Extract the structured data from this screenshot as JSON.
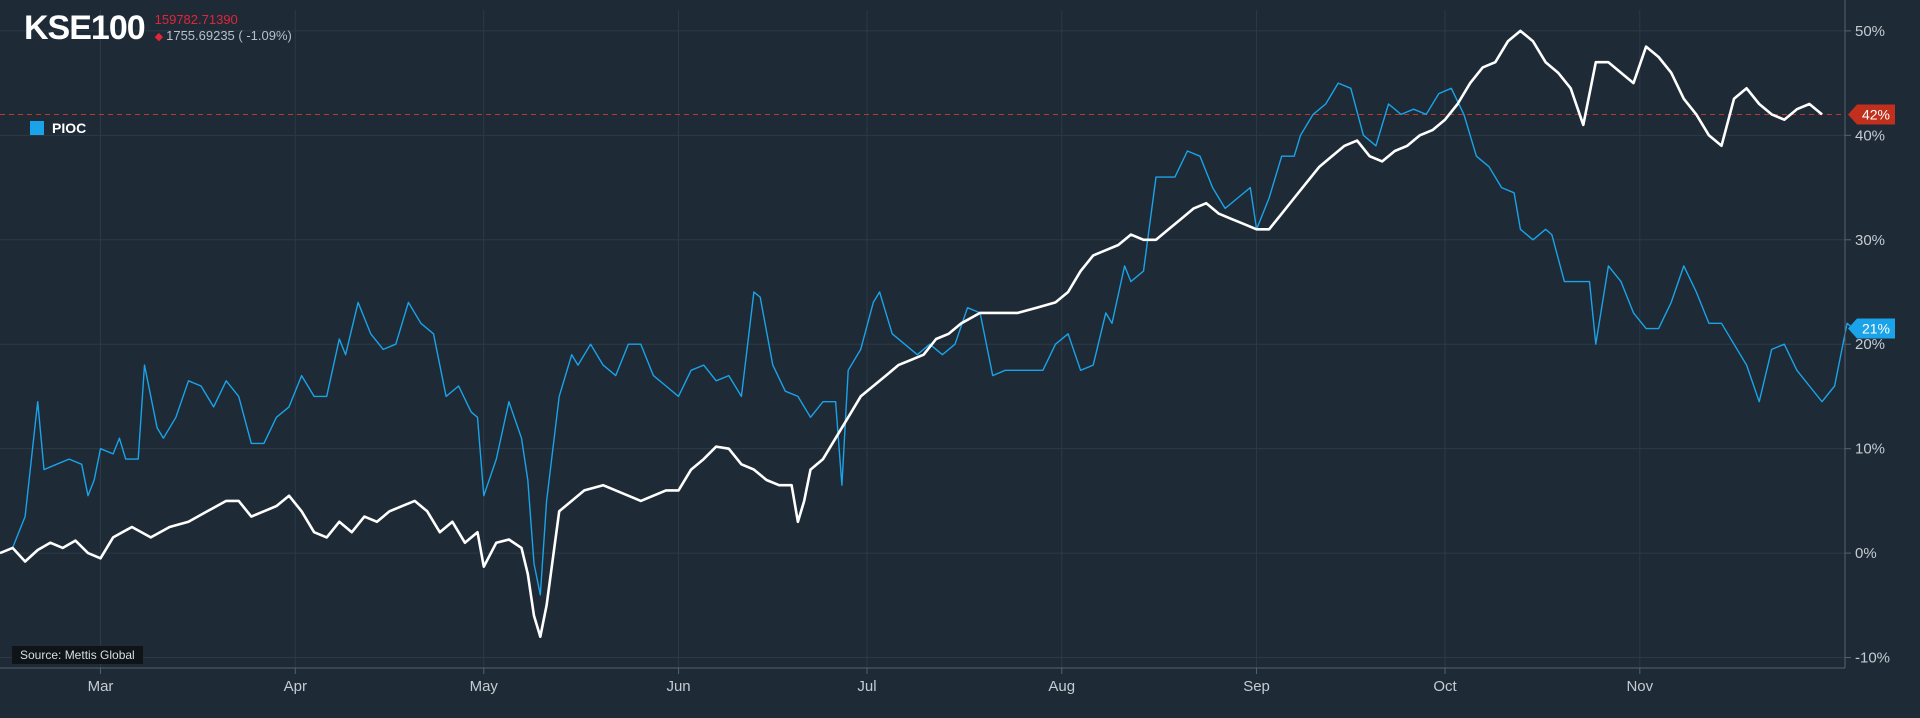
{
  "header": {
    "ticker": "KSE100",
    "price": "159782.71390",
    "change": "1755.69235 ( -1.09%)"
  },
  "legend": {
    "label": "PIOC",
    "color": "#1aa3e8"
  },
  "source": "Source: Mettis Global",
  "colors": {
    "background": "#1e2a36",
    "kse_line": "#ffffff",
    "pioc_line": "#1aa3e8",
    "kse_badge": "#c0301c",
    "pioc_badge": "#1aa3e8",
    "negative": "#e0263a"
  },
  "chart_data": {
    "type": "line",
    "x_axis": {
      "tick_labels": [
        "Mar",
        "Apr",
        "May",
        "Jun",
        "Jul",
        "Aug",
        "Sep",
        "Oct",
        "Nov"
      ],
      "tick_days": [
        28,
        59,
        89,
        120,
        150,
        181,
        212,
        242,
        273
      ],
      "range_days": [
        12,
        286
      ]
    },
    "y_axis": {
      "tick_labels": [
        "50%",
        "40%",
        "30%",
        "20%",
        "10%",
        "0%",
        "-10%"
      ],
      "tick_values": [
        50,
        40,
        30,
        20,
        10,
        0,
        -10
      ],
      "range": [
        -11,
        52
      ],
      "position": "right"
    },
    "grid": true,
    "reference_line": {
      "series": "KSE100",
      "value": 42,
      "label": "42%"
    },
    "series": [
      {
        "name": "KSE100",
        "last_label": "42%",
        "points": [
          [
            12,
            0
          ],
          [
            14,
            0.5
          ],
          [
            16,
            -0.8
          ],
          [
            18,
            0.3
          ],
          [
            20,
            1
          ],
          [
            22,
            0.5
          ],
          [
            24,
            1.2
          ],
          [
            26,
            0
          ],
          [
            28,
            -0.5
          ],
          [
            30,
            1.5
          ],
          [
            33,
            2.5
          ],
          [
            36,
            1.5
          ],
          [
            39,
            2.5
          ],
          [
            42,
            3
          ],
          [
            45,
            4
          ],
          [
            48,
            5
          ],
          [
            50,
            5
          ],
          [
            52,
            3.5
          ],
          [
            54,
            4
          ],
          [
            56,
            4.5
          ],
          [
            58,
            5.5
          ],
          [
            60,
            4
          ],
          [
            62,
            2
          ],
          [
            64,
            1.5
          ],
          [
            66,
            3
          ],
          [
            68,
            2
          ],
          [
            70,
            3.5
          ],
          [
            72,
            3
          ],
          [
            74,
            4
          ],
          [
            76,
            4.5
          ],
          [
            78,
            5
          ],
          [
            80,
            4
          ],
          [
            82,
            2
          ],
          [
            84,
            3
          ],
          [
            86,
            1
          ],
          [
            88,
            2
          ],
          [
            89,
            -1.3
          ],
          [
            91,
            1
          ],
          [
            93,
            1.3
          ],
          [
            95,
            0.5
          ],
          [
            96,
            -2
          ],
          [
            97,
            -6
          ],
          [
            98,
            -8
          ],
          [
            99,
            -5
          ],
          [
            101,
            4
          ],
          [
            103,
            5
          ],
          [
            105,
            6
          ],
          [
            108,
            6.5
          ],
          [
            110,
            6
          ],
          [
            112,
            5.5
          ],
          [
            114,
            5
          ],
          [
            116,
            5.5
          ],
          [
            118,
            6
          ],
          [
            120,
            6
          ],
          [
            122,
            8
          ],
          [
            124,
            9
          ],
          [
            126,
            10.2
          ],
          [
            128,
            10
          ],
          [
            130,
            8.5
          ],
          [
            132,
            8
          ],
          [
            134,
            7
          ],
          [
            136,
            6.5
          ],
          [
            138,
            6.5
          ],
          [
            139,
            3
          ],
          [
            140,
            5
          ],
          [
            141,
            8
          ],
          [
            143,
            9
          ],
          [
            145,
            11
          ],
          [
            147,
            13
          ],
          [
            149,
            15
          ],
          [
            151,
            16
          ],
          [
            153,
            17
          ],
          [
            155,
            18
          ],
          [
            157,
            18.5
          ],
          [
            159,
            19
          ],
          [
            161,
            20.5
          ],
          [
            163,
            21
          ],
          [
            165,
            22
          ],
          [
            168,
            23
          ],
          [
            171,
            23
          ],
          [
            174,
            23
          ],
          [
            177,
            23.5
          ],
          [
            180,
            24
          ],
          [
            182,
            25
          ],
          [
            184,
            27
          ],
          [
            186,
            28.5
          ],
          [
            188,
            29
          ],
          [
            190,
            29.5
          ],
          [
            192,
            30.5
          ],
          [
            194,
            30
          ],
          [
            196,
            30
          ],
          [
            198,
            31
          ],
          [
            200,
            32
          ],
          [
            202,
            33
          ],
          [
            204,
            33.5
          ],
          [
            206,
            32.5
          ],
          [
            208,
            32
          ],
          [
            210,
            31.5
          ],
          [
            212,
            31
          ],
          [
            214,
            31
          ],
          [
            216,
            32.5
          ],
          [
            218,
            34
          ],
          [
            220,
            35.5
          ],
          [
            222,
            37
          ],
          [
            224,
            38
          ],
          [
            226,
            39
          ],
          [
            228,
            39.5
          ],
          [
            230,
            38
          ],
          [
            232,
            37.5
          ],
          [
            234,
            38.5
          ],
          [
            236,
            39
          ],
          [
            238,
            40
          ],
          [
            240,
            40.5
          ],
          [
            242,
            41.5
          ],
          [
            244,
            43
          ],
          [
            246,
            45
          ],
          [
            248,
            46.5
          ],
          [
            250,
            47
          ],
          [
            252,
            49
          ],
          [
            254,
            50
          ],
          [
            256,
            49
          ],
          [
            258,
            47
          ],
          [
            260,
            46
          ],
          [
            262,
            44.5
          ],
          [
            264,
            41
          ],
          [
            266,
            47
          ],
          [
            268,
            47
          ],
          [
            270,
            46
          ],
          [
            272,
            45
          ],
          [
            274,
            48.5
          ],
          [
            276,
            47.5
          ],
          [
            278,
            46
          ],
          [
            280,
            43.5
          ],
          [
            282,
            42
          ],
          [
            284,
            40
          ],
          [
            286,
            39
          ],
          [
            288,
            43.5
          ],
          [
            290,
            44.5
          ],
          [
            292,
            43
          ],
          [
            294,
            42
          ],
          [
            296,
            41.5
          ],
          [
            298,
            42.5
          ],
          [
            300,
            43
          ],
          [
            302,
            42
          ]
        ]
      },
      {
        "name": "PIOC",
        "last_label": "21%",
        "points": [
          [
            12,
            0
          ],
          [
            14,
            0.5
          ],
          [
            15,
            2
          ],
          [
            16,
            3.5
          ],
          [
            17,
            9
          ],
          [
            18,
            14.5
          ],
          [
            19,
            8
          ],
          [
            21,
            8.5
          ],
          [
            23,
            9
          ],
          [
            25,
            8.5
          ],
          [
            26,
            5.5
          ],
          [
            27,
            7
          ],
          [
            28,
            10
          ],
          [
            30,
            9.5
          ],
          [
            31,
            11
          ],
          [
            32,
            9
          ],
          [
            34,
            9
          ],
          [
            35,
            18
          ],
          [
            37,
            12
          ],
          [
            38,
            11
          ],
          [
            40,
            13
          ],
          [
            42,
            16.5
          ],
          [
            44,
            16
          ],
          [
            46,
            14
          ],
          [
            48,
            16.5
          ],
          [
            50,
            15
          ],
          [
            52,
            10.5
          ],
          [
            54,
            10.5
          ],
          [
            56,
            13
          ],
          [
            58,
            14
          ],
          [
            60,
            17
          ],
          [
            62,
            15
          ],
          [
            64,
            15
          ],
          [
            66,
            20.5
          ],
          [
            67,
            19
          ],
          [
            69,
            24
          ],
          [
            71,
            21
          ],
          [
            73,
            19.5
          ],
          [
            75,
            20
          ],
          [
            77,
            24
          ],
          [
            79,
            22
          ],
          [
            81,
            21
          ],
          [
            83,
            15
          ],
          [
            85,
            16
          ],
          [
            87,
            13.5
          ],
          [
            88,
            13
          ],
          [
            89,
            5.5
          ],
          [
            91,
            9
          ],
          [
            93,
            14.5
          ],
          [
            95,
            11
          ],
          [
            96,
            7
          ],
          [
            97,
            -1
          ],
          [
            98,
            -4
          ],
          [
            99,
            5
          ],
          [
            101,
            15
          ],
          [
            103,
            19
          ],
          [
            104,
            18
          ],
          [
            106,
            20
          ],
          [
            108,
            18
          ],
          [
            110,
            17
          ],
          [
            112,
            20
          ],
          [
            114,
            20
          ],
          [
            116,
            17
          ],
          [
            118,
            16
          ],
          [
            120,
            15
          ],
          [
            122,
            17.5
          ],
          [
            124,
            18
          ],
          [
            126,
            16.5
          ],
          [
            128,
            17
          ],
          [
            130,
            15
          ],
          [
            132,
            25
          ],
          [
            133,
            24.5
          ],
          [
            135,
            18
          ],
          [
            137,
            15.5
          ],
          [
            139,
            15
          ],
          [
            141,
            13
          ],
          [
            143,
            14.5
          ],
          [
            145,
            14.5
          ],
          [
            146,
            6.5
          ],
          [
            147,
            17.5
          ],
          [
            149,
            19.5
          ],
          [
            151,
            24
          ],
          [
            152,
            25
          ],
          [
            154,
            21
          ],
          [
            156,
            20
          ],
          [
            158,
            19
          ],
          [
            160,
            20
          ],
          [
            162,
            19
          ],
          [
            164,
            20
          ],
          [
            166,
            23.5
          ],
          [
            168,
            23
          ],
          [
            170,
            17
          ],
          [
            172,
            17.5
          ],
          [
            175,
            17.5
          ],
          [
            178,
            17.5
          ],
          [
            180,
            20
          ],
          [
            182,
            21
          ],
          [
            184,
            17.5
          ],
          [
            186,
            18
          ],
          [
            188,
            23
          ],
          [
            189,
            22
          ],
          [
            191,
            27.5
          ],
          [
            192,
            26
          ],
          [
            194,
            27
          ],
          [
            196,
            36
          ],
          [
            199,
            36
          ],
          [
            201,
            38.5
          ],
          [
            203,
            38
          ],
          [
            205,
            35
          ],
          [
            207,
            33
          ],
          [
            209,
            34
          ],
          [
            211,
            35
          ],
          [
            212,
            31
          ],
          [
            214,
            34
          ],
          [
            216,
            38
          ],
          [
            218,
            38
          ],
          [
            219,
            40
          ],
          [
            221,
            42
          ],
          [
            223,
            43
          ],
          [
            225,
            45
          ],
          [
            227,
            44.5
          ],
          [
            229,
            40
          ],
          [
            231,
            39
          ],
          [
            233,
            43
          ],
          [
            235,
            42
          ],
          [
            237,
            42.5
          ],
          [
            239,
            42
          ],
          [
            241,
            44
          ],
          [
            243,
            44.5
          ],
          [
            245,
            42
          ],
          [
            247,
            38
          ],
          [
            249,
            37
          ],
          [
            251,
            35
          ],
          [
            253,
            34.5
          ],
          [
            254,
            31
          ],
          [
            256,
            30
          ],
          [
            258,
            31
          ],
          [
            259,
            30.5
          ],
          [
            261,
            26
          ],
          [
            263,
            26
          ],
          [
            265,
            26
          ],
          [
            266,
            20
          ],
          [
            268,
            27.5
          ],
          [
            270,
            26
          ],
          [
            272,
            23
          ],
          [
            274,
            21.5
          ],
          [
            276,
            21.5
          ],
          [
            278,
            24
          ],
          [
            280,
            27.5
          ],
          [
            282,
            25
          ],
          [
            284,
            22
          ],
          [
            286,
            22
          ],
          [
            288,
            20
          ],
          [
            290,
            18
          ],
          [
            292,
            14.5
          ],
          [
            294,
            19.5
          ],
          [
            296,
            20
          ],
          [
            298,
            17.5
          ],
          [
            300,
            16
          ],
          [
            302,
            14.5
          ],
          [
            304,
            16
          ],
          [
            306,
            22
          ],
          [
            307,
            21.5
          ]
        ]
      }
    ]
  }
}
